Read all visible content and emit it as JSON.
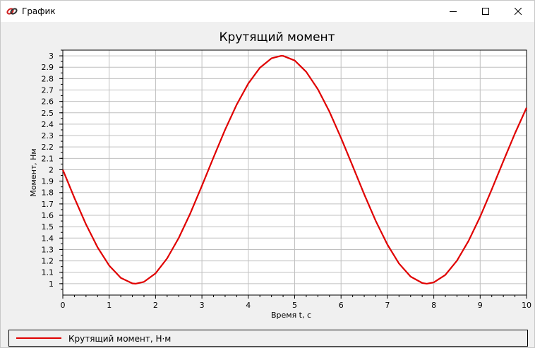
{
  "window": {
    "title": "График",
    "icon": "app-logo-icon",
    "buttons": [
      "minimize-icon",
      "maximize-icon",
      "close-icon"
    ]
  },
  "chart_data": {
    "type": "line",
    "title": "Крутящий момент",
    "xlabel": "Время t, с",
    "ylabel": "Момент, Нм",
    "xlim": [
      0,
      10
    ],
    "ylim": [
      0.9,
      3.05
    ],
    "xticks": [
      "0",
      "1",
      "2",
      "3",
      "4",
      "5",
      "6",
      "7",
      "8",
      "9",
      "10"
    ],
    "yticks": [
      "1",
      "1.1",
      "1.2",
      "1.3",
      "1.4",
      "1.5",
      "1.6",
      "1.7",
      "1.8",
      "1.9",
      "2",
      "2.1",
      "2.2",
      "2.3",
      "2.4",
      "2.5",
      "2.6",
      "2.7",
      "2.8",
      "2.9",
      "3"
    ],
    "grid": true,
    "legend_position": "bottom",
    "series": [
      {
        "name": "Крутящий момент, Н·м",
        "color": "#e00000",
        "x": [
          0,
          0.25,
          0.5,
          0.75,
          1,
          1.25,
          1.5,
          1.57,
          1.75,
          2,
          2.25,
          2.5,
          2.75,
          3,
          3.25,
          3.5,
          3.75,
          4,
          4.25,
          4.5,
          4.71,
          4.75,
          5,
          5.25,
          5.5,
          5.75,
          6,
          6.25,
          6.5,
          6.75,
          7,
          7.25,
          7.5,
          7.75,
          7.85,
          8,
          8.25,
          8.5,
          8.75,
          9,
          9.25,
          9.5,
          9.75,
          10
        ],
        "y": [
          2.0,
          1.753,
          1.521,
          1.318,
          1.159,
          1.051,
          1.002,
          1.0,
          1.016,
          1.091,
          1.222,
          1.402,
          1.618,
          1.859,
          2.108,
          2.351,
          2.572,
          2.757,
          2.895,
          2.978,
          3.0,
          2.999,
          2.959,
          2.859,
          2.706,
          2.509,
          2.279,
          2.033,
          1.785,
          1.549,
          1.343,
          1.177,
          1.062,
          1.006,
          1.0,
          1.011,
          1.077,
          1.202,
          1.376,
          1.588,
          1.827,
          2.075,
          2.319,
          2.544
        ]
      }
    ]
  }
}
